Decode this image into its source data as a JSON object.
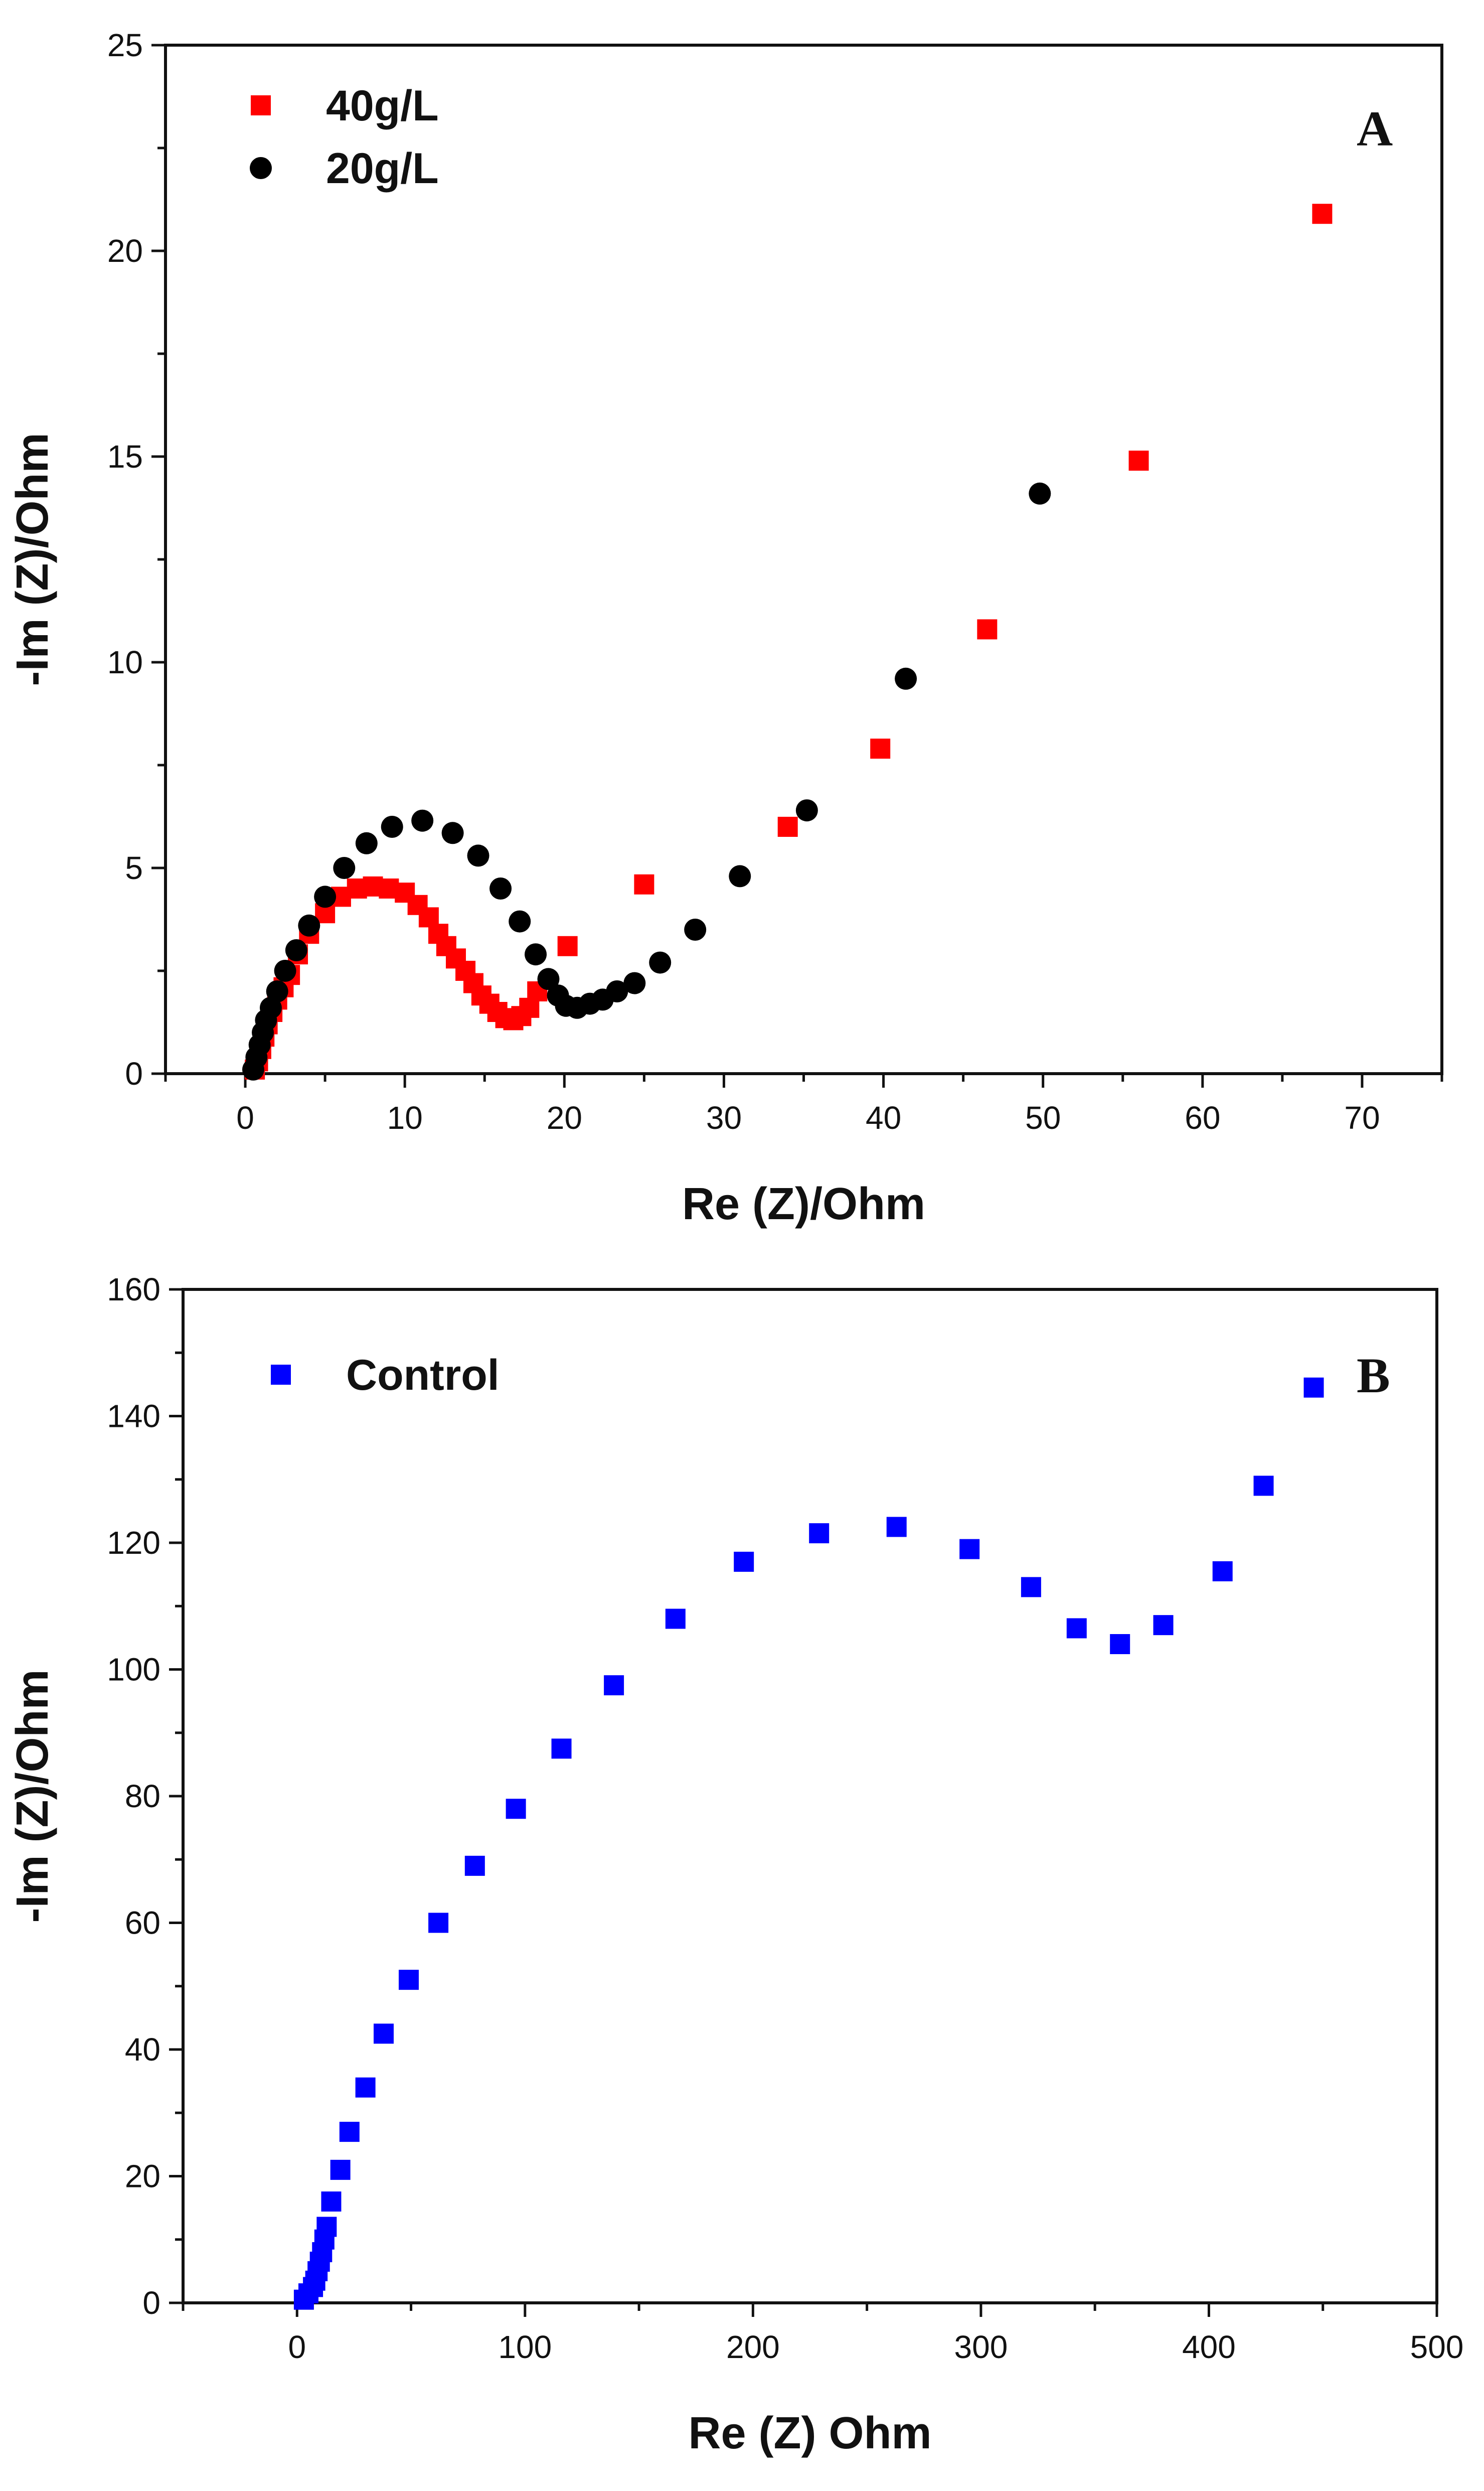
{
  "chart_data": [
    {
      "type": "scatter",
      "panel_label": "A",
      "title": "",
      "xlabel": "Re (Z)/Ohm",
      "ylabel": "-Im (Z)/Ohm",
      "xlim": [
        -5,
        75
      ],
      "ylim": [
        0,
        25
      ],
      "xticks": [
        0,
        10,
        20,
        30,
        40,
        50,
        60,
        70
      ],
      "yticks": [
        0,
        5,
        10,
        15,
        20,
        25
      ],
      "legend_position": "top-left",
      "series": [
        {
          "name": "40g/L",
          "marker": "square",
          "color": "#ff0000",
          "points": [
            [
              0.6,
              0.1
            ],
            [
              0.8,
              0.3
            ],
            [
              1.0,
              0.6
            ],
            [
              1.2,
              0.9
            ],
            [
              1.4,
              1.2
            ],
            [
              1.7,
              1.5
            ],
            [
              2.0,
              1.8
            ],
            [
              2.4,
              2.1
            ],
            [
              2.8,
              2.4
            ],
            [
              3.3,
              2.9
            ],
            [
              4.0,
              3.4
            ],
            [
              5.0,
              3.9
            ],
            [
              6.0,
              4.3
            ],
            [
              7.0,
              4.5
            ],
            [
              8.0,
              4.55
            ],
            [
              9.0,
              4.5
            ],
            [
              10.0,
              4.4
            ],
            [
              10.8,
              4.1
            ],
            [
              11.5,
              3.8
            ],
            [
              12.1,
              3.4
            ],
            [
              12.6,
              3.1
            ],
            [
              13.2,
              2.8
            ],
            [
              13.8,
              2.5
            ],
            [
              14.3,
              2.2
            ],
            [
              14.8,
              1.9
            ],
            [
              15.3,
              1.7
            ],
            [
              15.8,
              1.5
            ],
            [
              16.3,
              1.35
            ],
            [
              16.8,
              1.3
            ],
            [
              17.3,
              1.4
            ],
            [
              17.8,
              1.6
            ],
            [
              18.3,
              2.0
            ],
            [
              20.2,
              3.1
            ],
            [
              25.0,
              4.6
            ],
            [
              34.0,
              6.0
            ],
            [
              39.8,
              7.9
            ],
            [
              46.5,
              10.8
            ],
            [
              56.0,
              14.9
            ],
            [
              67.5,
              20.9
            ]
          ]
        },
        {
          "name": "20g/L",
          "marker": "circle",
          "color": "#000000",
          "points": [
            [
              0.5,
              0.1
            ],
            [
              0.7,
              0.4
            ],
            [
              0.9,
              0.7
            ],
            [
              1.1,
              1.0
            ],
            [
              1.3,
              1.3
            ],
            [
              1.6,
              1.6
            ],
            [
              2.0,
              2.0
            ],
            [
              2.5,
              2.5
            ],
            [
              3.2,
              3.0
            ],
            [
              4.0,
              3.6
            ],
            [
              5.0,
              4.3
            ],
            [
              6.2,
              5.0
            ],
            [
              7.6,
              5.6
            ],
            [
              9.2,
              6.0
            ],
            [
              11.1,
              6.15
            ],
            [
              13.0,
              5.85
            ],
            [
              14.6,
              5.3
            ],
            [
              16.0,
              4.5
            ],
            [
              17.2,
              3.7
            ],
            [
              18.2,
              2.9
            ],
            [
              19.0,
              2.3
            ],
            [
              19.6,
              1.9
            ],
            [
              20.1,
              1.65
            ],
            [
              20.8,
              1.6
            ],
            [
              21.6,
              1.7
            ],
            [
              22.4,
              1.8
            ],
            [
              23.3,
              2.0
            ],
            [
              24.4,
              2.2
            ],
            [
              26.0,
              2.7
            ],
            [
              28.2,
              3.5
            ],
            [
              31.0,
              4.8
            ],
            [
              35.2,
              6.4
            ],
            [
              41.4,
              9.6
            ],
            [
              49.8,
              14.1
            ]
          ]
        }
      ]
    },
    {
      "type": "scatter",
      "panel_label": "B",
      "title": "",
      "xlabel": "Re (Z) Ohm",
      "ylabel": "-Im (Z)/Ohm",
      "xlim": [
        -50,
        500
      ],
      "ylim": [
        0,
        160
      ],
      "xticks": [
        0,
        100,
        200,
        300,
        400,
        500
      ],
      "yticks": [
        0,
        20,
        40,
        60,
        80,
        100,
        120,
        140,
        160
      ],
      "legend_position": "top-left",
      "series": [
        {
          "name": "Control",
          "marker": "square",
          "color": "#0000ff",
          "points": [
            [
              3,
              0.5
            ],
            [
              5,
              1.5
            ],
            [
              7,
              2.5
            ],
            [
              8,
              3.5
            ],
            [
              9,
              5
            ],
            [
              10,
              6.5
            ],
            [
              11,
              8
            ],
            [
              12,
              10
            ],
            [
              13,
              12
            ],
            [
              15,
              16
            ],
            [
              19,
              21
            ],
            [
              23,
              27
            ],
            [
              30,
              34
            ],
            [
              38,
              42.5
            ],
            [
              49,
              51
            ],
            [
              62,
              60
            ],
            [
              78,
              69
            ],
            [
              96,
              78
            ],
            [
              116,
              87.5
            ],
            [
              139,
              97.5
            ],
            [
              166,
              108
            ],
            [
              196,
              117
            ],
            [
              229,
              121.5
            ],
            [
              263,
              122.5
            ],
            [
              295,
              119
            ],
            [
              322,
              113
            ],
            [
              342,
              106.5
            ],
            [
              361,
              104
            ],
            [
              380,
              107
            ],
            [
              406,
              115.5
            ],
            [
              424,
              129
            ],
            [
              446,
              144.5
            ]
          ]
        }
      ]
    }
  ]
}
